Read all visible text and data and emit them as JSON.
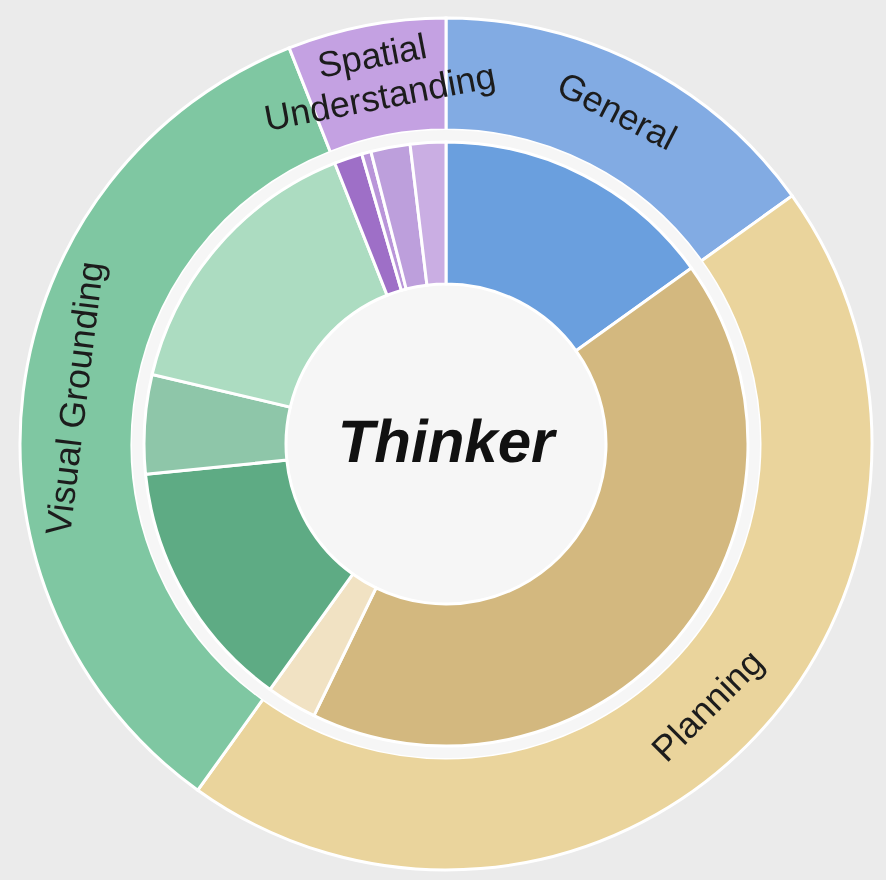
{
  "chart_data": [
    {
      "type": "donut",
      "categories": [
        "General",
        "Planning",
        "Visual Grounding",
        "Spatial Understanding"
      ],
      "values": [
        15.1,
        44.8,
        34.1,
        6.0
      ],
      "colors": [
        "#82abe3",
        "#ead49c",
        "#7fc7a2",
        "#c4a1e2"
      ]
    },
    {
      "type": "donut",
      "title": "Thinker",
      "categories": [
        null,
        null,
        null,
        null,
        null,
        null,
        null,
        null,
        null,
        null
      ],
      "values": [
        15.1,
        42.1,
        2.7,
        13.5,
        5.3,
        15.3,
        1.5,
        0.5,
        2.1,
        1.9
      ],
      "colors": [
        "#6a9fde",
        "#d3b87f",
        "#f1e2c3",
        "#5eab84",
        "#8ec6a9",
        "#acdcc1",
        "#9e6fc7",
        "#b995d9",
        "#bd9fdc",
        "#caaee3"
      ]
    }
  ]
}
